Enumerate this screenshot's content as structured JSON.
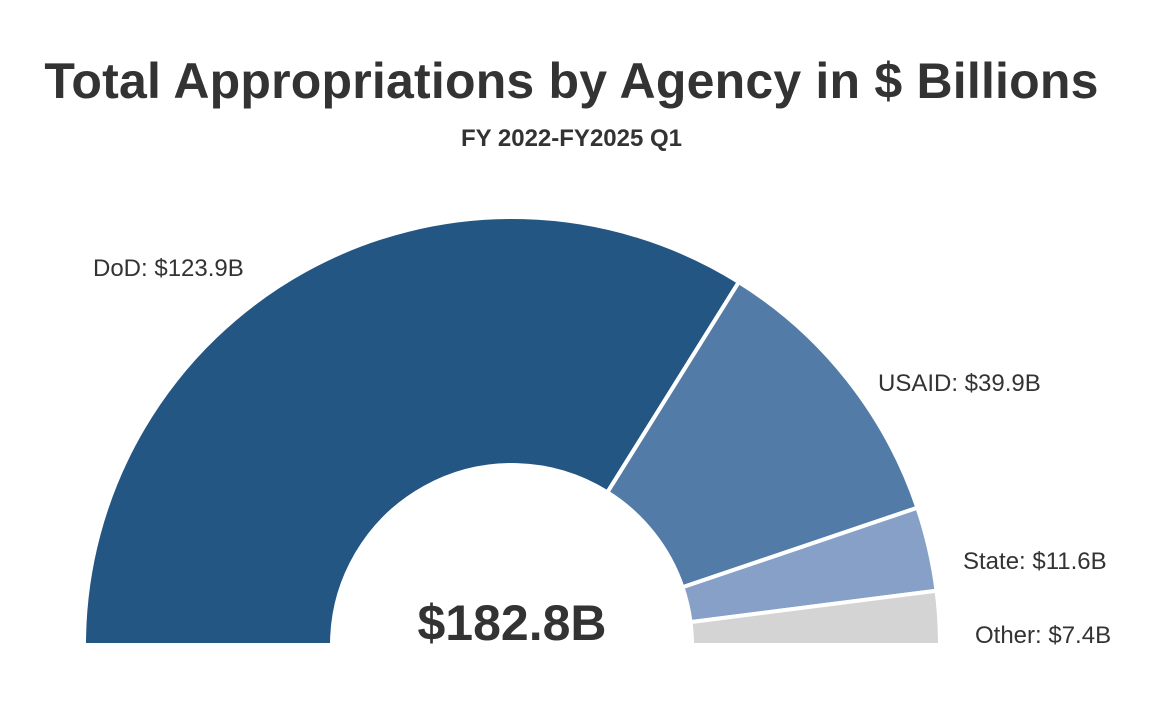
{
  "chart_data": {
    "type": "pie",
    "subtype": "semi-donut",
    "title": "Total Appropriations by Agency in $ Billions",
    "subtitle": "FY 2022-FY2025 Q1",
    "total_label": "$182.8B",
    "unit": "$ Billions",
    "slices": [
      {
        "name": "DoD",
        "value": 123.9,
        "label": "DoD: $123.9B",
        "color": "#245684"
      },
      {
        "name": "USAID",
        "value": 39.9,
        "label": "USAID: $39.9B",
        "color": "#527ca7"
      },
      {
        "name": "State",
        "value": 11.6,
        "label": "State: $11.6B",
        "color": "#87a0c8"
      },
      {
        "name": "Other",
        "value": 7.4,
        "label": "Other: $7.4B",
        "color": "#d4d4d4"
      }
    ]
  }
}
